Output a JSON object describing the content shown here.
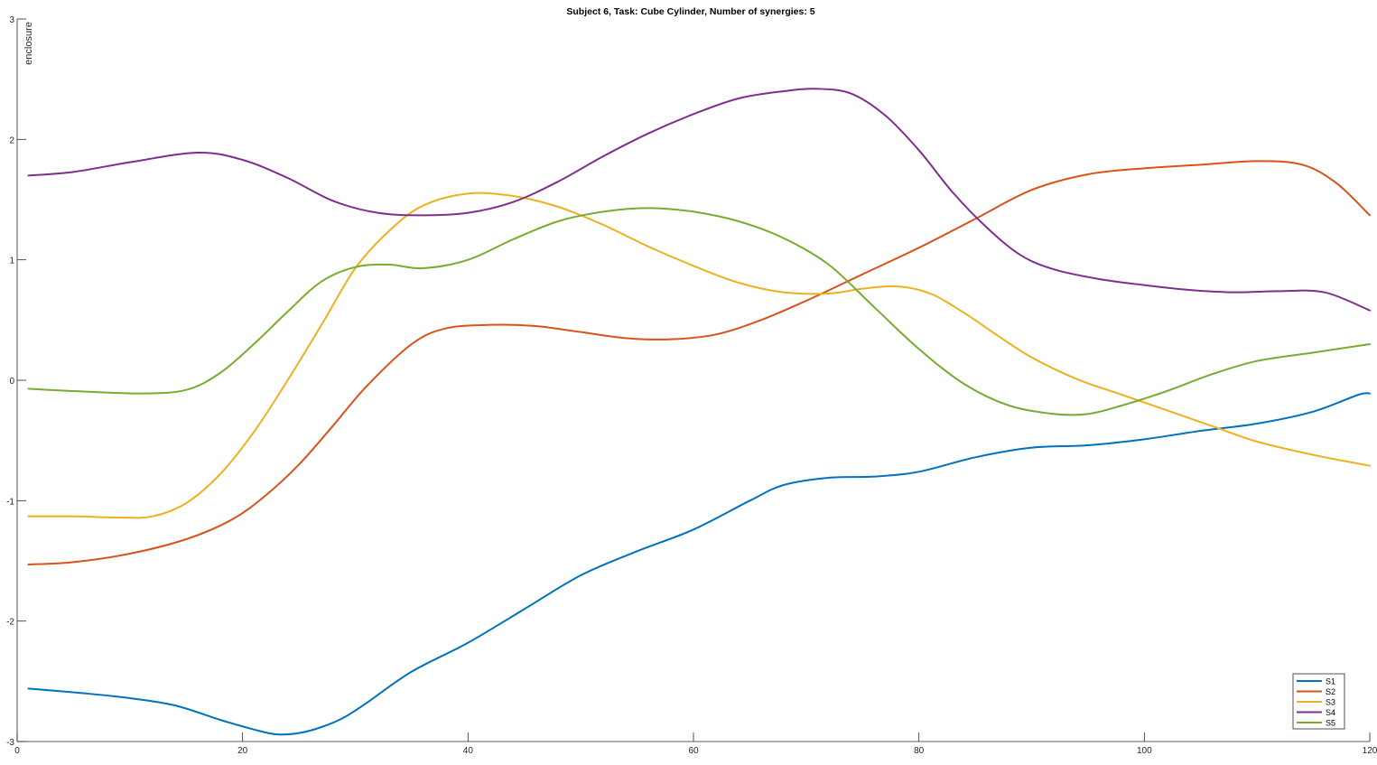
{
  "chart_data": {
    "type": "line",
    "title": "Subject 6, Task: Cube Cylinder, Number of synergies: 5",
    "xlabel": "",
    "ylabel": "enclosure",
    "xlim": [
      0,
      120
    ],
    "ylim": [
      -3,
      3
    ],
    "xticks": [
      "0",
      "20",
      "40",
      "60",
      "80",
      "100",
      "120"
    ],
    "yticks": [
      "-3",
      "-2",
      "-1",
      "0",
      "1",
      "2",
      "3"
    ],
    "grid": false,
    "legend_position": "bottom-right",
    "series": [
      {
        "name": "S1",
        "color": "#0072BD",
        "x": [
          1,
          6,
          10,
          14,
          18,
          21,
          23,
          25,
          27,
          29,
          31,
          35,
          40,
          45,
          50,
          55,
          60,
          65,
          68,
          72,
          76,
          80,
          85,
          90,
          95,
          100,
          105,
          110,
          115,
          119,
          120
        ],
        "y": [
          -2.56,
          -2.6,
          -2.64,
          -2.7,
          -2.82,
          -2.9,
          -2.94,
          -2.93,
          -2.88,
          -2.8,
          -2.68,
          -2.42,
          -2.18,
          -1.9,
          -1.62,
          -1.42,
          -1.24,
          -1.0,
          -0.87,
          -0.81,
          -0.8,
          -0.76,
          -0.64,
          -0.56,
          -0.54,
          -0.49,
          -0.42,
          -0.36,
          -0.26,
          -0.12,
          -0.11
        ]
      },
      {
        "name": "S2",
        "color": "#D95319",
        "x": [
          1,
          5,
          10,
          15,
          19,
          22,
          25,
          28,
          31,
          35,
          38,
          42,
          46,
          50,
          54,
          58,
          62,
          66,
          70,
          75,
          80,
          85,
          90,
          95,
          100,
          105,
          110,
          114,
          117,
          120
        ],
        "y": [
          -1.53,
          -1.51,
          -1.44,
          -1.32,
          -1.16,
          -0.96,
          -0.7,
          -0.38,
          -0.05,
          0.3,
          0.43,
          0.46,
          0.45,
          0.4,
          0.35,
          0.34,
          0.38,
          0.5,
          0.66,
          0.88,
          1.1,
          1.34,
          1.58,
          1.71,
          1.76,
          1.79,
          1.82,
          1.79,
          1.64,
          1.37
        ]
      },
      {
        "name": "S3",
        "color": "#EDB120",
        "x": [
          1,
          5,
          9,
          12,
          15,
          18,
          21,
          24,
          27,
          30,
          33,
          36,
          40,
          44,
          48,
          52,
          56,
          60,
          64,
          68,
          72,
          75,
          78,
          81,
          84,
          87,
          90,
          94,
          98,
          102,
          106,
          110,
          115,
          120
        ],
        "y": [
          -1.13,
          -1.13,
          -1.14,
          -1.13,
          -1.02,
          -0.78,
          -0.43,
          0.0,
          0.46,
          0.93,
          1.24,
          1.45,
          1.55,
          1.53,
          1.44,
          1.29,
          1.11,
          0.95,
          0.81,
          0.73,
          0.72,
          0.76,
          0.78,
          0.72,
          0.56,
          0.37,
          0.19,
          0.01,
          -0.12,
          -0.25,
          -0.38,
          -0.51,
          -0.62,
          -0.71
        ]
      },
      {
        "name": "S4",
        "color": "#7E2F8E",
        "x": [
          1,
          5,
          10,
          16,
          20,
          24,
          28,
          32,
          36,
          40,
          44,
          48,
          52,
          56,
          60,
          64,
          68,
          71,
          74,
          77,
          80,
          83,
          86,
          89,
          92,
          96,
          100,
          104,
          108,
          112,
          116,
          120
        ],
        "y": [
          1.7,
          1.73,
          1.81,
          1.89,
          1.83,
          1.68,
          1.49,
          1.39,
          1.37,
          1.39,
          1.48,
          1.65,
          1.86,
          2.05,
          2.21,
          2.34,
          2.4,
          2.42,
          2.38,
          2.2,
          1.91,
          1.56,
          1.27,
          1.04,
          0.92,
          0.84,
          0.79,
          0.75,
          0.73,
          0.74,
          0.73,
          0.58
        ]
      },
      {
        "name": "S5",
        "color": "#77AC30",
        "x": [
          1,
          5,
          11,
          15,
          18,
          21,
          24,
          27,
          30,
          33,
          36,
          40,
          44,
          48,
          52,
          56,
          60,
          64,
          68,
          72,
          76,
          80,
          84,
          88,
          92,
          95,
          98,
          102,
          106,
          110,
          115,
          120
        ],
        "y": [
          -0.07,
          -0.09,
          -0.11,
          -0.08,
          0.06,
          0.3,
          0.57,
          0.82,
          0.94,
          0.96,
          0.93,
          1.0,
          1.17,
          1.32,
          1.4,
          1.43,
          1.4,
          1.32,
          1.18,
          0.96,
          0.61,
          0.26,
          -0.03,
          -0.21,
          -0.28,
          -0.28,
          -0.21,
          -0.09,
          0.05,
          0.16,
          0.23,
          0.3
        ]
      }
    ]
  }
}
